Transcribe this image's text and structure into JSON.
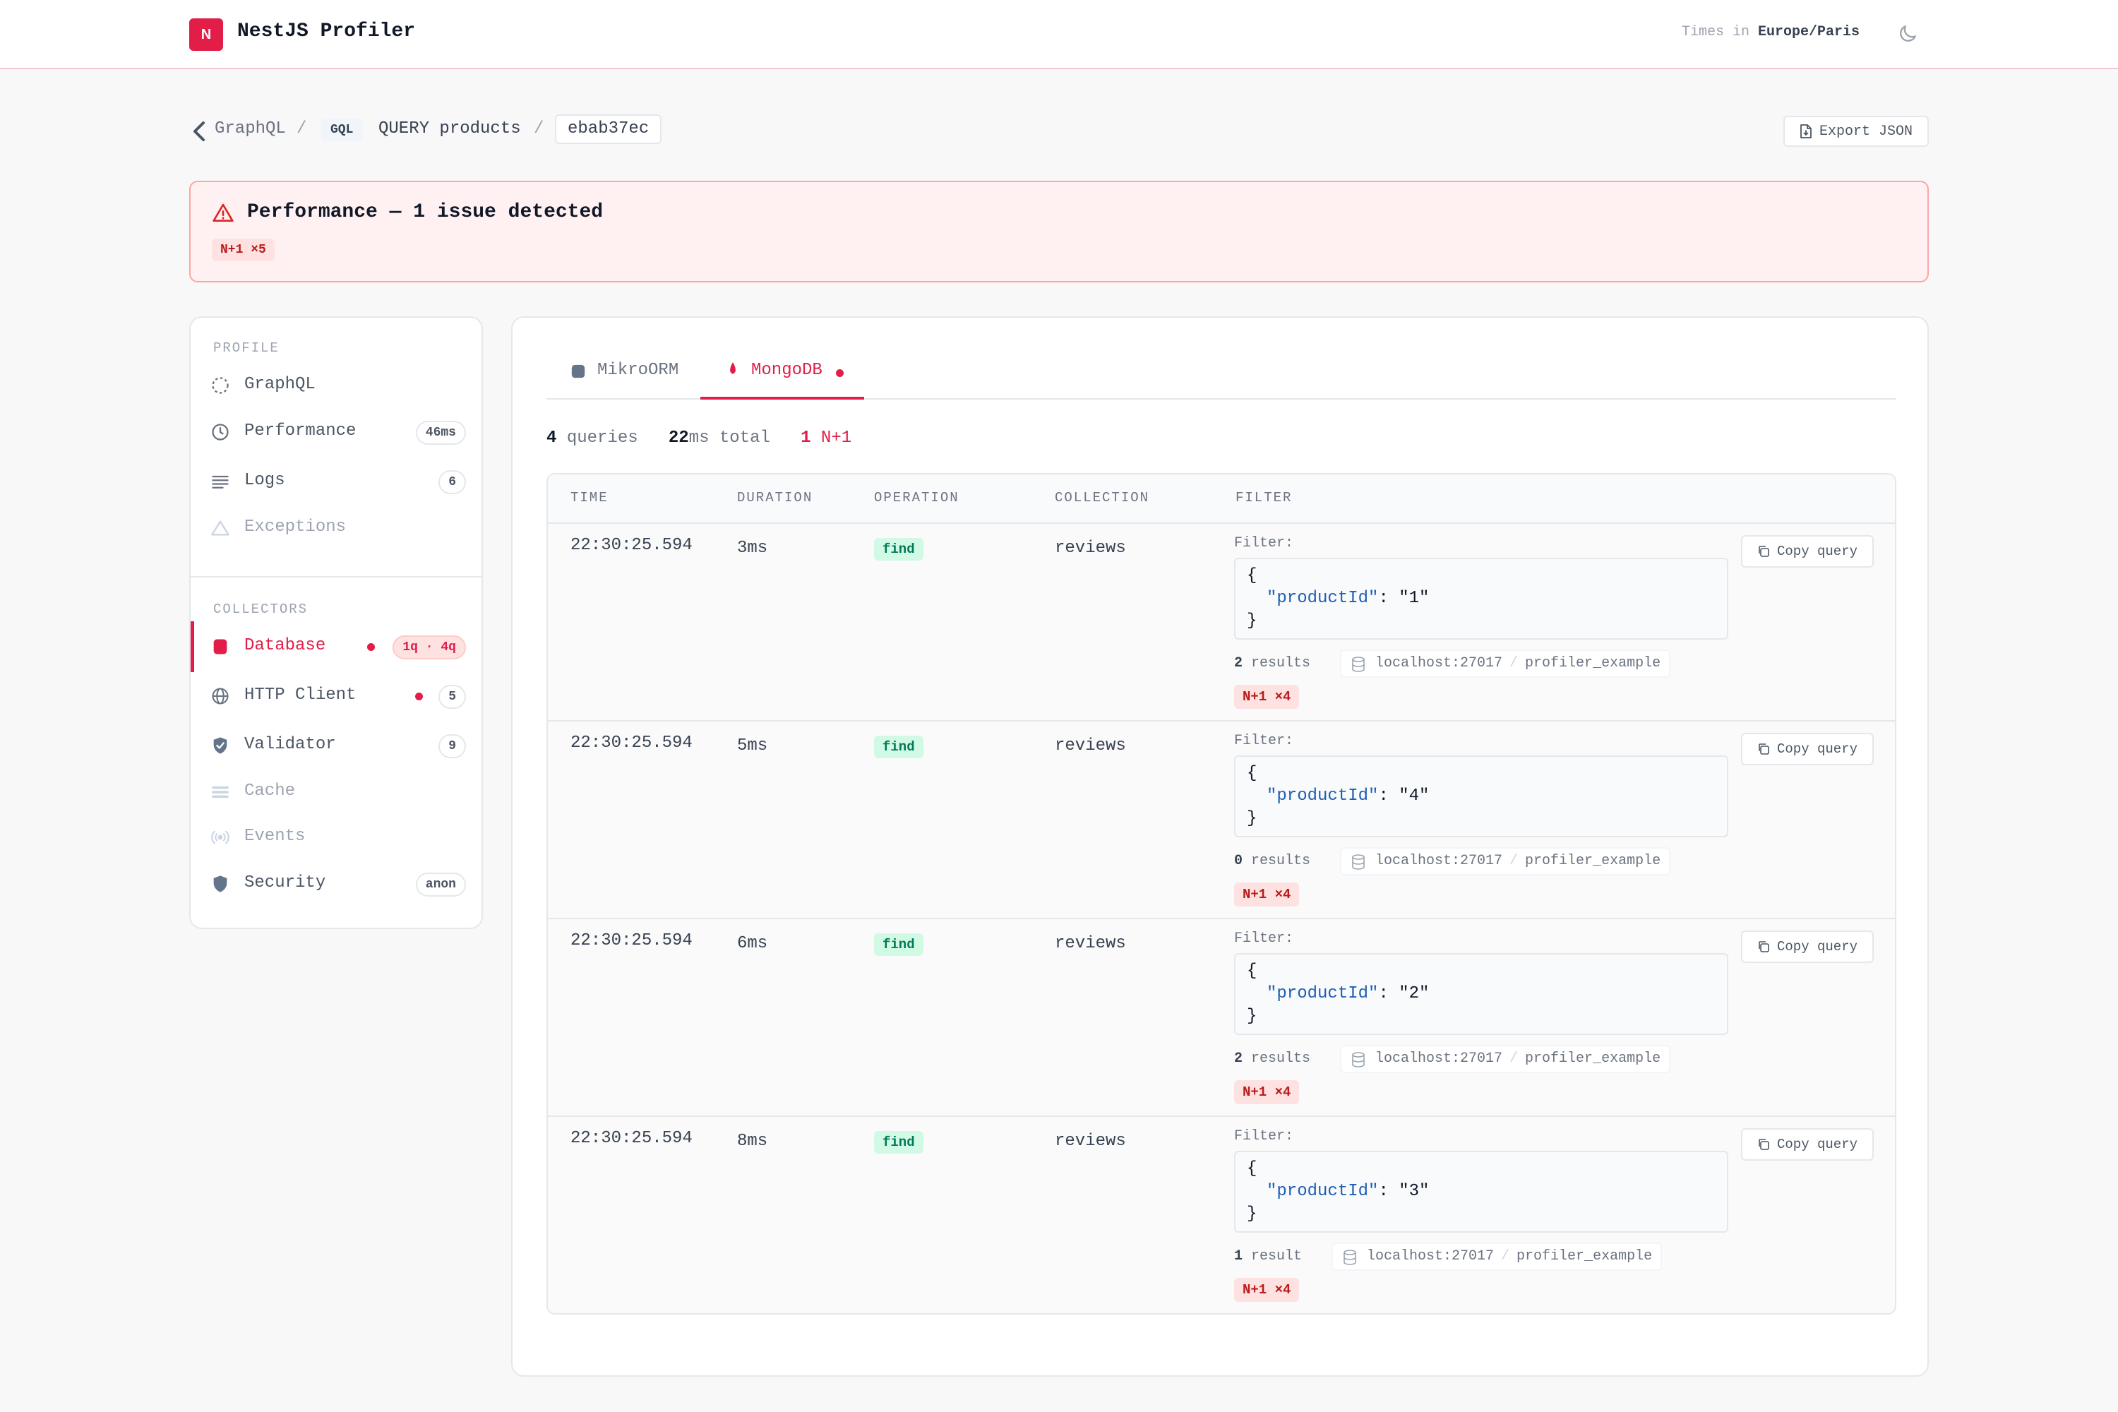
{
  "header": {
    "logo_letter": "N",
    "title": "NestJS Profiler",
    "tz_prefix": "Times in",
    "tz_value": "Europe/Paris"
  },
  "breadcrumb": {
    "link": "GraphQL",
    "sep": "/",
    "type_badge": "GQL",
    "query": "QUERY products",
    "id": "ebab37ec"
  },
  "export_label": "Export JSON",
  "alert": {
    "title": "Performance — 1 issue detected",
    "badge": "N+1 ×5"
  },
  "sidebar": {
    "profile_heading": "PROFILE",
    "collectors_heading": "COLLECTORS",
    "profile_items": [
      {
        "label": "GraphQL",
        "badge": "",
        "icon": "graphql-icon"
      },
      {
        "label": "Performance",
        "badge": "46ms",
        "icon": "clock-icon"
      },
      {
        "label": "Logs",
        "badge": "6",
        "icon": "lines-icon"
      },
      {
        "label": "Exceptions",
        "badge": "",
        "icon": "warning-icon"
      }
    ],
    "collector_items": [
      {
        "label": "Database",
        "badge": "1q · 4q",
        "icon": "database-icon"
      },
      {
        "label": "HTTP Client",
        "badge": "5",
        "icon": "globe-icon"
      },
      {
        "label": "Validator",
        "badge": "9",
        "icon": "shield-check-icon"
      },
      {
        "label": "Cache",
        "badge": "",
        "icon": "cache-icon"
      },
      {
        "label": "Events",
        "badge": "",
        "icon": "broadcast-icon"
      },
      {
        "label": "Security",
        "badge": "anon",
        "icon": "shield-icon"
      }
    ]
  },
  "tabs": [
    {
      "label": "MikroORM",
      "icon": "database-icon"
    },
    {
      "label": "MongoDB",
      "icon": "leaf-icon"
    }
  ],
  "stats": {
    "queries_count": "4",
    "queries_label": "queries",
    "total_count": "22",
    "total_label": "ms total",
    "n1_count": "1",
    "n1_label": "N+1"
  },
  "table": {
    "headers": [
      "TIME",
      "DURATION",
      "OPERATION",
      "COLLECTION",
      "FILTER"
    ],
    "filter_label": "Filter:",
    "copy_label": "Copy query",
    "rows": [
      {
        "time": "22:30:25.594",
        "duration": "3ms",
        "operation": "find",
        "collection": "reviews",
        "key": "\"productId\"",
        "value": "\"1\"",
        "results_count": "2",
        "results_label": "results",
        "host": "localhost:27017",
        "db": "profiler_example",
        "n1": "N+1 ×4"
      },
      {
        "time": "22:30:25.594",
        "duration": "5ms",
        "operation": "find",
        "collection": "reviews",
        "key": "\"productId\"",
        "value": "\"4\"",
        "results_count": "0",
        "results_label": "results",
        "host": "localhost:27017",
        "db": "profiler_example",
        "n1": "N+1 ×4"
      },
      {
        "time": "22:30:25.594",
        "duration": "6ms",
        "operation": "find",
        "collection": "reviews",
        "key": "\"productId\"",
        "value": "\"2\"",
        "results_count": "2",
        "results_label": "results",
        "host": "localhost:27017",
        "db": "profiler_example",
        "n1": "N+1 ×4"
      },
      {
        "time": "22:30:25.594",
        "duration": "8ms",
        "operation": "find",
        "collection": "reviews",
        "key": "\"productId\"",
        "value": "\"3\"",
        "results_count": "1",
        "results_label": "result",
        "host": "localhost:27017",
        "db": "profiler_example",
        "n1": "N+1 ×4"
      }
    ]
  },
  "colors": {
    "accent": "#e11d48",
    "success_bg": "#d1fae5",
    "success_text": "#047857",
    "danger_bg": "#fee2e2"
  }
}
